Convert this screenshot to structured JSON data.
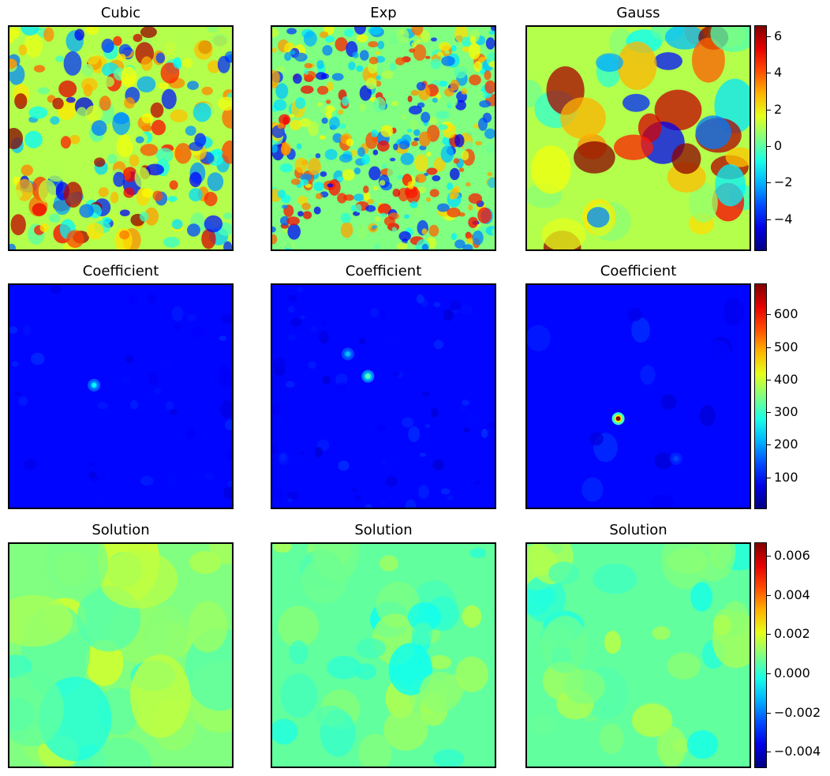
{
  "colors": {
    "colormap": "jet"
  },
  "chart_data": [
    {
      "type": "heatmap",
      "title": "Cubic",
      "row": 1,
      "col": 1,
      "field": "random-field-cubic"
    },
    {
      "type": "heatmap",
      "title": "Exp",
      "row": 1,
      "col": 2,
      "field": "random-field-exp"
    },
    {
      "type": "heatmap",
      "title": "Gauss",
      "row": 1,
      "col": 3,
      "field": "random-field-gauss",
      "colorbar": {
        "range": [
          -5.7,
          6.6
        ],
        "ticks": [
          -4,
          -2,
          0,
          2,
          4,
          6
        ],
        "tick_labels": [
          "−4",
          "−2",
          "0",
          "2",
          "4",
          "6"
        ]
      }
    },
    {
      "type": "heatmap",
      "title": "Coefficient",
      "row": 2,
      "col": 1,
      "field": "coefficient-cubic",
      "peaks": [
        {
          "x": 0.38,
          "y": 0.45,
          "value": 260
        }
      ]
    },
    {
      "type": "heatmap",
      "title": "Coefficient",
      "row": 2,
      "col": 2,
      "field": "coefficient-exp",
      "peaks": [
        {
          "x": 0.34,
          "y": 0.31,
          "value": 220
        },
        {
          "x": 0.43,
          "y": 0.41,
          "value": 330
        }
      ]
    },
    {
      "type": "heatmap",
      "title": "Coefficient",
      "row": 2,
      "col": 3,
      "field": "coefficient-gauss",
      "colorbar": {
        "range": [
          5,
          695
        ],
        "ticks": [
          100,
          200,
          300,
          400,
          500,
          600
        ],
        "tick_labels": [
          "100",
          "200",
          "300",
          "400",
          "500",
          "600"
        ]
      },
      "peaks": [
        {
          "x": 0.41,
          "y": 0.6,
          "value": 690
        },
        {
          "x": 0.67,
          "y": 0.78,
          "value": 140
        }
      ]
    },
    {
      "type": "heatmap",
      "title": "Solution",
      "row": 3,
      "col": 1,
      "field": "solution-cubic"
    },
    {
      "type": "heatmap",
      "title": "Solution",
      "row": 3,
      "col": 2,
      "field": "solution-exp"
    },
    {
      "type": "heatmap",
      "title": "Solution",
      "row": 3,
      "col": 3,
      "field": "solution-gauss",
      "colorbar": {
        "range": [
          -0.0048,
          0.0067
        ],
        "ticks": [
          -0.004,
          -0.002,
          0.0,
          0.002,
          0.004,
          0.006
        ],
        "tick_labels": [
          "−0.004",
          "−0.002",
          "0.000",
          "0.002",
          "0.004",
          "0.006"
        ]
      }
    }
  ]
}
